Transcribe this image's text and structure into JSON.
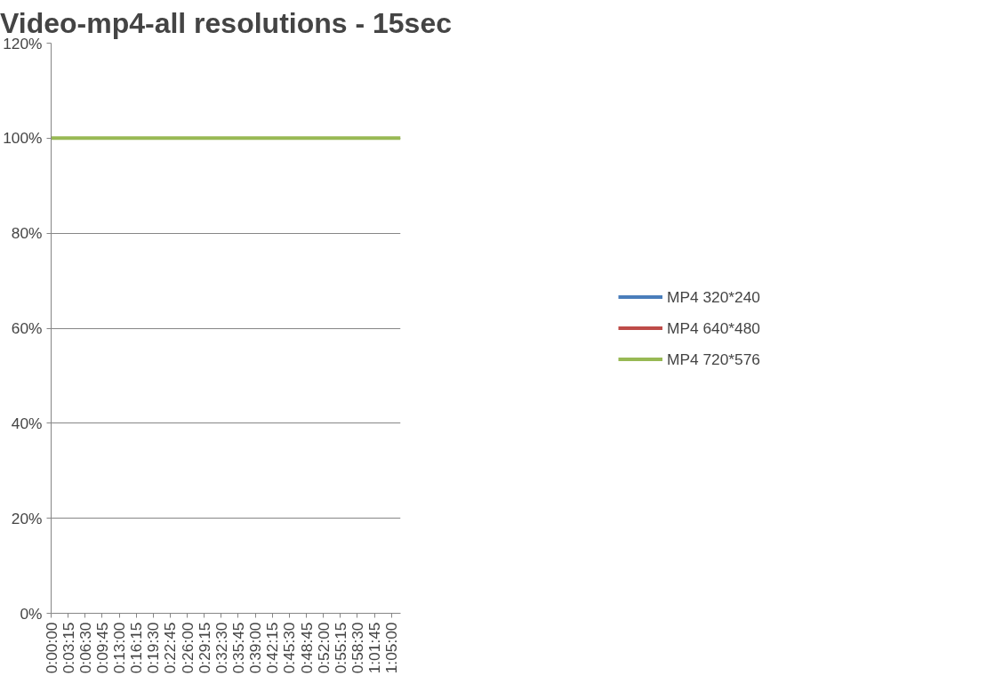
{
  "chart_data": {
    "type": "line",
    "title": "Video-mp4-all resolutions - 15sec",
    "x": [
      0,
      1.1125
    ],
    "series": [
      {
        "name": "MP4 320*240",
        "color": "#4a7ebb",
        "values": [
          null,
          null
        ]
      },
      {
        "name": "MP4 640*480",
        "color": "#be4b48",
        "values": [
          null,
          null
        ]
      },
      {
        "name": "MP4 720*576",
        "color": "#98b954",
        "values": [
          100,
          100
        ]
      }
    ],
    "xlim": [
      0,
      1.1125
    ],
    "xticks": [
      {
        "value": 0,
        "label": "0:00:00"
      },
      {
        "value": 0.054167,
        "label": "0:03:15"
      },
      {
        "value": 0.108333,
        "label": "0:06:30"
      },
      {
        "value": 0.1625,
        "label": "0:09:45"
      },
      {
        "value": 0.216667,
        "label": "0:13:00"
      },
      {
        "value": 0.270833,
        "label": "0:16:15"
      },
      {
        "value": 0.325,
        "label": "0:19:30"
      },
      {
        "value": 0.379167,
        "label": "0:22:45"
      },
      {
        "value": 0.433333,
        "label": "0:26:00"
      },
      {
        "value": 0.4875,
        "label": "0:29:15"
      },
      {
        "value": 0.541667,
        "label": "0:32:30"
      },
      {
        "value": 0.595833,
        "label": "0:35:45"
      },
      {
        "value": 0.65,
        "label": "0:39:00"
      },
      {
        "value": 0.704167,
        "label": "0:42:15"
      },
      {
        "value": 0.758333,
        "label": "0:45:30"
      },
      {
        "value": 0.8125,
        "label": "0:48:45"
      },
      {
        "value": 0.866667,
        "label": "0:52:00"
      },
      {
        "value": 0.920833,
        "label": "0:55:15"
      },
      {
        "value": 0.975,
        "label": "0:58:30"
      },
      {
        "value": 1.029167,
        "label": "1:01:45"
      },
      {
        "value": 1.083333,
        "label": "1:05:00"
      }
    ],
    "ylim": [
      0,
      120
    ],
    "yticks": [
      {
        "value": 0,
        "label": "0%"
      },
      {
        "value": 20,
        "label": "20%"
      },
      {
        "value": 40,
        "label": "40%"
      },
      {
        "value": 60,
        "label": "60%"
      },
      {
        "value": 80,
        "label": "80%"
      },
      {
        "value": 100,
        "label": "100%"
      },
      {
        "value": 120,
        "label": "120%"
      }
    ],
    "grid": "y",
    "legend": "right",
    "marker": "none",
    "line_style": "solid"
  }
}
